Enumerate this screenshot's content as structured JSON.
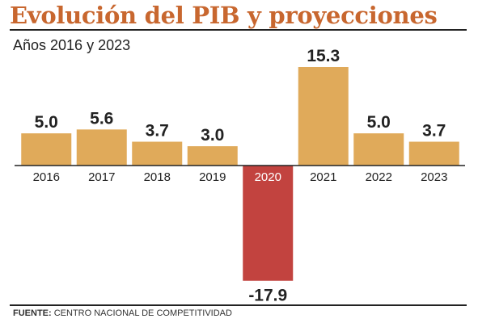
{
  "title": "Evolución del PIB y proyecciones",
  "subtitle": "Años 2016 y 2023",
  "footer": {
    "label": "FUENTE:",
    "source": "CENTRO NACIONAL DE COMPETITIVIDAD"
  },
  "colors": {
    "title": "#c8672f",
    "bar_positive": "#e0aa5a",
    "bar_negative": "#c2433f",
    "axis": "#222222",
    "text": "#222222"
  },
  "chart_data": {
    "type": "bar",
    "categories": [
      "2016",
      "2017",
      "2018",
      "2019",
      "2020",
      "2021",
      "2022",
      "2023"
    ],
    "values": [
      5.0,
      5.6,
      3.7,
      3.0,
      -17.9,
      15.3,
      5.0,
      3.7
    ],
    "value_labels": [
      "5.0",
      "5.6",
      "3.7",
      "3.0",
      "-17.9",
      "15.3",
      "5.0",
      "3.7"
    ],
    "title": "Evolución del PIB y proyecciones",
    "subtitle": "Años 2016 y 2023",
    "xlabel": "",
    "ylabel": "",
    "grid": false,
    "legend": "none",
    "highlight_category": "2020"
  }
}
